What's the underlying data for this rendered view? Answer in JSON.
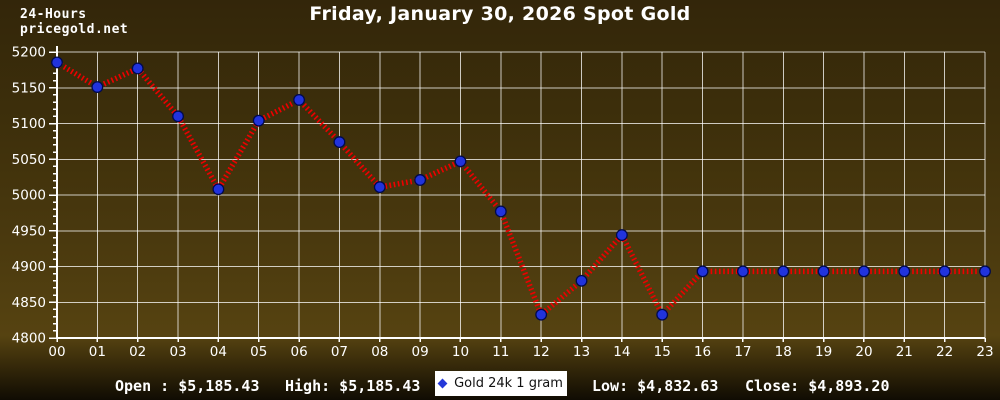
{
  "header": {
    "brand_line1": "24-Hours",
    "brand_line2": "pricegold.net",
    "title": "Friday, January 30, 2026 Spot Gold"
  },
  "legend": {
    "marker_icon": "blue-diamond",
    "marker_color": "#2438d8",
    "label": "Gold 24k 1 gram"
  },
  "footer": {
    "open": "Open : $5,185.43",
    "high": "High: $5,185.43",
    "low": "Low: $4,832.63",
    "close": "Close: $4,893.20"
  },
  "colors": {
    "background_top": "#33260a",
    "background_mid": "#564311",
    "background_bottom": "#100c03",
    "text": "#ffffff",
    "line": "#ee0000",
    "marker": "#2133dd",
    "grid": "#e6e6e6"
  },
  "chart_data": {
    "type": "line",
    "title": "Friday, January 30, 2026 Spot Gold",
    "x": [
      "00",
      "01",
      "02",
      "03",
      "04",
      "05",
      "06",
      "07",
      "08",
      "09",
      "10",
      "11",
      "12",
      "13",
      "14",
      "15",
      "16",
      "17",
      "18",
      "19",
      "20",
      "21",
      "22",
      "23"
    ],
    "series": [
      {
        "name": "Gold 24k 1 gram",
        "values": [
          5185.43,
          5151,
          5177,
          5110,
          5008,
          5104,
          5133,
          5074,
          5011,
          5021,
          5047,
          4977,
          4832.63,
          4880,
          4944,
          4832.63,
          4893.2,
          4893.2,
          4893.2,
          4893.2,
          4893.2,
          4893.2,
          4893.2,
          4893.2
        ]
      }
    ],
    "open": 5185.43,
    "high": 5185.43,
    "low": 4832.63,
    "close": 4893.2,
    "xlabel": "",
    "ylabel": "",
    "ylim": [
      4800,
      5200
    ],
    "ytick_step": 50,
    "yminor_step": 10,
    "grid": true,
    "legend_position": "bottom-center",
    "line_color": "#ee0000",
    "line_style": "coil-hatched",
    "marker_color": "#2133dd",
    "marker_edge_color": "#000a4d",
    "grid_color": "rgba(255,255,255,0.75)",
    "axis_color": "#ffffff",
    "label_color": "#ffffff"
  }
}
